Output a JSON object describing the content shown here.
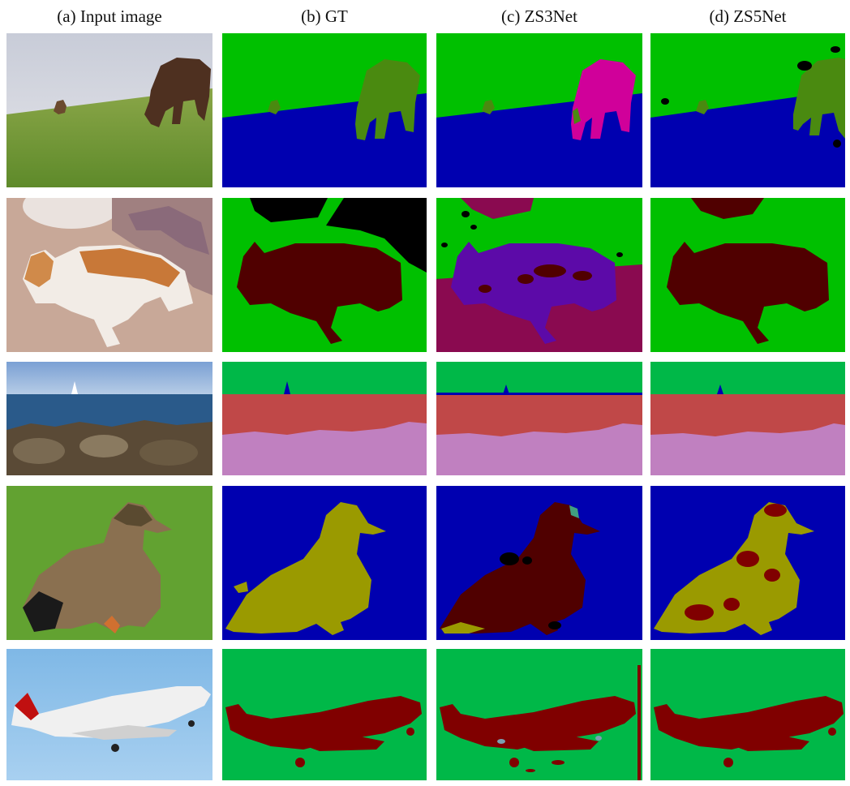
{
  "columns": [
    {
      "label": "(a) Input image"
    },
    {
      "label": "(b) GT"
    },
    {
      "label": "(c) ZS3Net"
    },
    {
      "label": "(d) ZS5Net"
    }
  ],
  "rows": [
    {
      "scene": "cows-on-grass"
    },
    {
      "scene": "cat-on-rug"
    },
    {
      "scene": "sailboat-sea-rocks"
    },
    {
      "scene": "duck-on-grass"
    },
    {
      "scene": "airplane-in-sky"
    }
  ],
  "palette": {
    "green": "#00c000",
    "blue": "#0000b0",
    "olive_green": "#4a8a10",
    "magenta": "#d0009a",
    "dark_red": "#500000",
    "black": "#000000",
    "purple": "#5c0aa8",
    "crimson": "#8a0a50",
    "salmon_red": "#c04848",
    "pink_lavender": "#c080c0",
    "mustard": "#9a9a00",
    "maroon": "#800000",
    "sky_green": "#00b848"
  }
}
